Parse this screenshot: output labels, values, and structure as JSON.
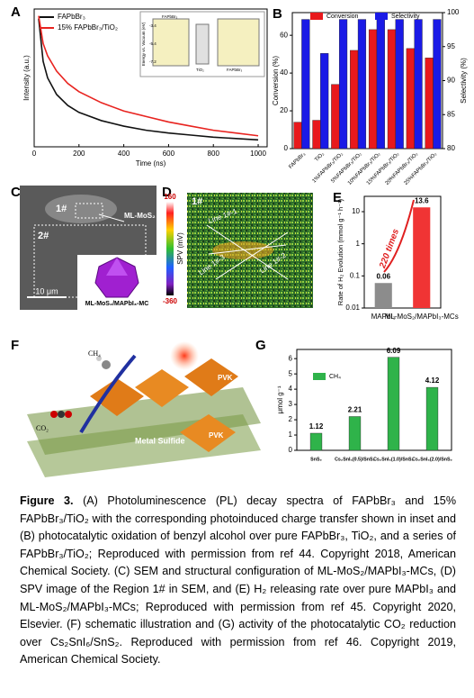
{
  "chart_data": [
    {
      "type": "line",
      "panel": "A",
      "x": [
        20,
        40,
        60,
        100,
        150,
        200,
        300,
        400,
        500,
        600,
        700,
        800,
        900,
        1000
      ],
      "series": [
        {
          "name": "FAPbBr₃",
          "color": "#111111",
          "values": [
            0.93,
            0.62,
            0.5,
            0.38,
            0.3,
            0.25,
            0.19,
            0.15,
            0.12,
            0.1,
            0.085,
            0.07,
            0.06,
            0.05
          ]
        },
        {
          "name": "15% FAPbBr₃/TiO₂",
          "color": "#e8231f",
          "values": [
            0.95,
            0.75,
            0.66,
            0.55,
            0.46,
            0.4,
            0.32,
            0.26,
            0.22,
            0.18,
            0.15,
            0.12,
            0.1,
            0.08
          ]
        }
      ],
      "xlim": [
        0,
        1040
      ],
      "xticks": [
        0,
        200,
        400,
        600,
        800,
        1000
      ],
      "ylim": [
        0,
        1
      ],
      "xlabel": "Time (ns)",
      "ylabel": "Intensity (a.u.)",
      "legend": "upper left",
      "inset_labels": [
        "FAPbBr₃",
        "TiO₂",
        "FAPbBr₃",
        "Energy vs. Vacuum (eV)",
        "-3.4",
        "-5.4",
        "-7.2"
      ]
    },
    {
      "type": "bar",
      "panel": "B",
      "categories": [
        "FAPbBr₃",
        "TiO₂",
        "1%FAPbBr₃/TiO₂",
        "5%FAPbBr₃/TiO₂",
        "10%FAPbBr₃/TiO₂",
        "15%FAPbBr₃/TiO₂",
        "20%FAPbBr₃/TiO₂",
        "25%FAPbBr₃/TiO₂"
      ],
      "series": [
        {
          "name": "Conversion",
          "color": "#e8191c",
          "values": [
            14,
            15,
            34,
            52,
            63,
            63,
            53,
            48
          ]
        },
        {
          "name": "Selectivity",
          "color": "#1a1ae6",
          "axis": "y2",
          "values": [
            99,
            94,
            99,
            99,
            99,
            99,
            99,
            99
          ]
        }
      ],
      "ylim": [
        0,
        72
      ],
      "yticks": [
        0,
        20,
        40,
        60
      ],
      "y2lim": [
        80,
        100
      ],
      "y2ticks": [
        80,
        85,
        90,
        95,
        100
      ],
      "ylabel": "Conversion (%)",
      "y2label": "Selectivity (%)",
      "legend": "top"
    },
    {
      "type": "bar",
      "panel": "E",
      "categories": [
        "MAPbI₃",
        "ML-MoS₂/MAPbI₃-MCs"
      ],
      "values": [
        0.06,
        13.6
      ],
      "colors": [
        "#8c8c8c",
        "#f03434"
      ],
      "ylim": [
        0.01,
        30
      ],
      "yticks": [
        0.01,
        0.1,
        1,
        10
      ],
      "log": true,
      "ylabel": "Rate of H₂ Evolution (mmol g⁻¹ h⁻¹)",
      "annotation": "220 times"
    },
    {
      "type": "bar",
      "panel": "G",
      "categories": [
        "SnS₂",
        "Cs₂SnI₆(0.5)/SnS₂",
        "Cs₂SnI₆(1.0)/SnS₂",
        "Cs₂SnI₆(2.0)/SnS₂"
      ],
      "series": [
        {
          "name": "CH₄",
          "color": "#2fb34a",
          "values": [
            1.12,
            2.21,
            6.09,
            4.12
          ]
        }
      ],
      "ylim": [
        0,
        6.6
      ],
      "yticks": [
        0,
        1,
        2,
        3,
        4,
        5,
        6
      ],
      "ylabel": "μmol g⁻¹",
      "legend": "upper left"
    }
  ],
  "panels": {
    "C": {
      "letter": "C",
      "labels": [
        "1#",
        "2#",
        "ML-MoS₂",
        "10 μm",
        "ML-MoS₂/MAPbI₃-MC"
      ]
    },
    "D": {
      "letter": "D",
      "colorbar_max": "160",
      "colorbar_min": "-360",
      "colorbar_label": "SPV (mV)",
      "labels": [
        "1#",
        "Line 1#-1",
        "Line 1#-2",
        "Line 1#-3"
      ]
    },
    "F": {
      "letter": "F",
      "labels": [
        "CH₄",
        "CO₂",
        "PVK",
        "PVK",
        "Metal Sulfide"
      ]
    }
  },
  "caption": {
    "label": "Figure 3.",
    "text": "(A) Photoluminescence (PL) decay spectra of FAPbBr₃ and 15% FAPbBr₃/TiO₂ with the corresponding photoinduced charge transfer shown in inset and (B) photocatalytic oxidation of benzyl alcohol over pure FAPbBr₃, TiO₂, and a series of FAPbBr₃/TiO₂; Reproduced with permission from ref 44. Copyright 2018, American Chemical Society. (C) SEM and structural configuration of ML-MoS₂/MAPbI₃-MCs, (D) SPV image of the Region 1# in SEM, and (E) H₂ releasing rate over pure MAPbI₃ and ML-MoS₂/MAPbI₃-MCs; Reproduced with permission from ref 45. Copyright 2020, Elsevier. (F) schematic illustration and (G) activity of the photocatalytic CO₂ reduction over Cs₂SnI₆/SnS₂. Reproduced with permission from ref 46. Copyright 2019, American Chemical Society."
  }
}
